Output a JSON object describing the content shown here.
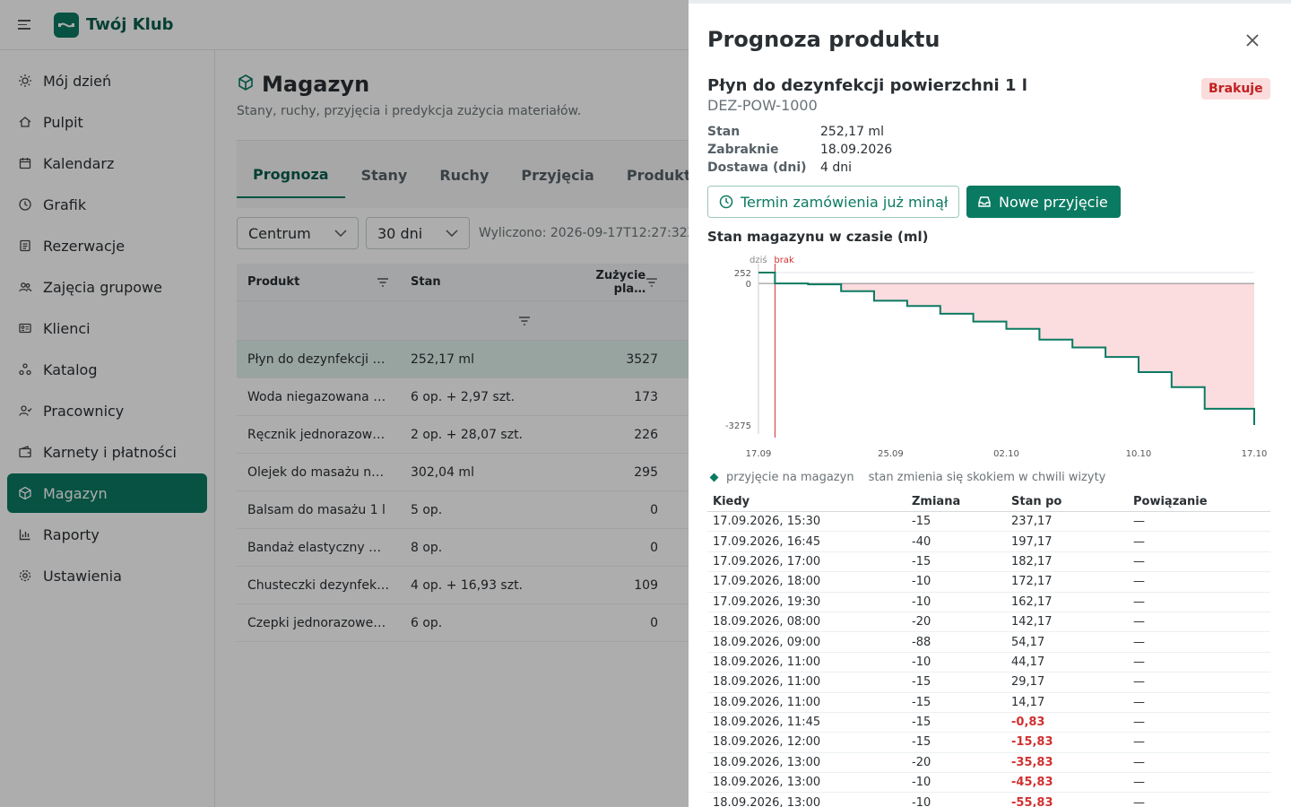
{
  "app": {
    "brand": "Twój Klub"
  },
  "sidebar": {
    "items": [
      {
        "label": "Mój dzień",
        "icon": "sun-icon"
      },
      {
        "label": "Pulpit",
        "icon": "home-icon"
      },
      {
        "label": "Kalendarz",
        "icon": "calendar-icon"
      },
      {
        "label": "Grafik",
        "icon": "clock-icon"
      },
      {
        "label": "Rezerwacje",
        "icon": "list-icon"
      },
      {
        "label": "Zajęcia grupowe",
        "icon": "group-icon"
      },
      {
        "label": "Klienci",
        "icon": "id-card-icon"
      },
      {
        "label": "Katalog",
        "icon": "catalog-icon"
      },
      {
        "label": "Pracownicy",
        "icon": "staff-icon"
      },
      {
        "label": "Karnety i płatności",
        "icon": "wallet-icon"
      },
      {
        "label": "Magazyn",
        "icon": "box-icon",
        "active": true
      },
      {
        "label": "Raporty",
        "icon": "chart-icon"
      },
      {
        "label": "Ustawienia",
        "icon": "gear-icon"
      }
    ]
  },
  "main": {
    "title": "Magazyn",
    "subtitle": "Stany, ruchy, przyjęcia i predykcja zużycia materiałów.",
    "tabs": [
      "Prognoza",
      "Stany",
      "Ruchy",
      "Przyjęcia",
      "Produkt"
    ],
    "filters": {
      "location": "Centrum",
      "range": "30 dni",
      "calculated": "Wyliczono: 2026-09-17T12:27:32Z"
    },
    "grid": {
      "headers": [
        "Produkt",
        "Stan",
        "Zużycie pla…"
      ],
      "rows": [
        {
          "name": "Płyn do dezynfekcji …",
          "stock": "252,17 ml",
          "usage": "3527"
        },
        {
          "name": "Woda niegazowana …",
          "stock": "6 op. + 2,97 szt.",
          "usage": "173"
        },
        {
          "name": "Ręcznik jednorazow…",
          "stock": "2 op. + 28,07 szt.",
          "usage": "226"
        },
        {
          "name": "Olejek do masażu n…",
          "stock": "302,04 ml",
          "usage": "295"
        },
        {
          "name": "Balsam do masażu 1 l",
          "stock": "5 op.",
          "usage": "0"
        },
        {
          "name": "Bandaż elastyczny …",
          "stock": "8 op.",
          "usage": "0"
        },
        {
          "name": "Chusteczki dezynfek…",
          "stock": "4 op. + 16,93 szt.",
          "usage": "109"
        },
        {
          "name": "Czepki jednorazowe…",
          "stock": "6 op.",
          "usage": "0"
        }
      ]
    }
  },
  "drawer": {
    "title": "Prognoza produktu",
    "product_name": "Płyn do dezynfekcji powierzchni 1 l",
    "sku": "DEZ-POW-1000",
    "badge": "Brakuje",
    "info": [
      {
        "k": "Stan",
        "v": "252,17 ml"
      },
      {
        "k": "Zabraknie",
        "v": "18.09.2026"
      },
      {
        "k": "Dostawa (dni)",
        "v": "4 dni"
      }
    ],
    "btn_deadline": "Termin zamówienia już minął",
    "btn_new": "Nowe przyjęcie",
    "chart_title": "Stan magazynu w czasie (ml)",
    "legend_label": "przyjęcie na magazyn",
    "legend_note": "stan zmienia się skokiem w chwili wizyty",
    "table_headers": [
      "Kiedy",
      "Zmiana",
      "Stan po",
      "Powiązanie"
    ],
    "table_rows": [
      {
        "when": "17.09.2026, 15:30",
        "delta": "-15",
        "after": "237,17",
        "link": "—",
        "neg": false
      },
      {
        "when": "17.09.2026, 16:45",
        "delta": "-40",
        "after": "197,17",
        "link": "—",
        "neg": false
      },
      {
        "when": "17.09.2026, 17:00",
        "delta": "-15",
        "after": "182,17",
        "link": "—",
        "neg": false
      },
      {
        "when": "17.09.2026, 18:00",
        "delta": "-10",
        "after": "172,17",
        "link": "—",
        "neg": false
      },
      {
        "when": "17.09.2026, 19:30",
        "delta": "-10",
        "after": "162,17",
        "link": "—",
        "neg": false
      },
      {
        "when": "18.09.2026, 08:00",
        "delta": "-20",
        "after": "142,17",
        "link": "—",
        "neg": false
      },
      {
        "when": "18.09.2026, 09:00",
        "delta": "-88",
        "after": "54,17",
        "link": "—",
        "neg": false
      },
      {
        "when": "18.09.2026, 11:00",
        "delta": "-10",
        "after": "44,17",
        "link": "—",
        "neg": false
      },
      {
        "when": "18.09.2026, 11:00",
        "delta": "-15",
        "after": "29,17",
        "link": "—",
        "neg": false
      },
      {
        "when": "18.09.2026, 11:00",
        "delta": "-15",
        "after": "14,17",
        "link": "—",
        "neg": false
      },
      {
        "when": "18.09.2026, 11:45",
        "delta": "-15",
        "after": "-0,83",
        "link": "—",
        "neg": true
      },
      {
        "when": "18.09.2026, 12:00",
        "delta": "-15",
        "after": "-15,83",
        "link": "—",
        "neg": true
      },
      {
        "when": "18.09.2026, 13:00",
        "delta": "-20",
        "after": "-35,83",
        "link": "—",
        "neg": true
      },
      {
        "when": "18.09.2026, 13:00",
        "delta": "-10",
        "after": "-45,83",
        "link": "—",
        "neg": true
      },
      {
        "when": "18.09.2026, 13:00",
        "delta": "-10",
        "after": "-55,83",
        "link": "—",
        "neg": true
      }
    ]
  },
  "chart_data": {
    "type": "line",
    "title": "Stan magazynu w czasie (ml)",
    "xlabel": "",
    "ylabel": "",
    "x_ticks": [
      "17.09",
      "25.09",
      "02.10",
      "10.10",
      "17.10"
    ],
    "y_ticks": [
      252,
      0,
      -3275
    ],
    "ylim": [
      -3275,
      252
    ],
    "xlim": [
      "2026-09-17",
      "2026-10-17"
    ],
    "markers": [
      {
        "label": "dziś",
        "x": "2026-09-17"
      },
      {
        "label": "brak",
        "x": "2026-09-18"
      }
    ],
    "series": [
      {
        "x": [
          "2026-09-17",
          "2026-09-18",
          "2026-09-20",
          "2026-09-22",
          "2026-09-24",
          "2026-09-26",
          "2026-09-28",
          "2026-09-30",
          "2026-10-02",
          "2026-10-04",
          "2026-10-06",
          "2026-10-08",
          "2026-10-10",
          "2026-10-12",
          "2026-10-14",
          "2026-10-17"
        ],
        "values": [
          252,
          0,
          -20,
          -180,
          -400,
          -520,
          -700,
          -880,
          -1050,
          -1300,
          -1480,
          -1700,
          -2050,
          -2400,
          -2900,
          -3275
        ]
      }
    ],
    "colors": {
      "line": "#0b7a62",
      "fill": "#fbdcdf",
      "marker": "#d23030"
    },
    "grid": true,
    "legend": "bottom-left"
  }
}
